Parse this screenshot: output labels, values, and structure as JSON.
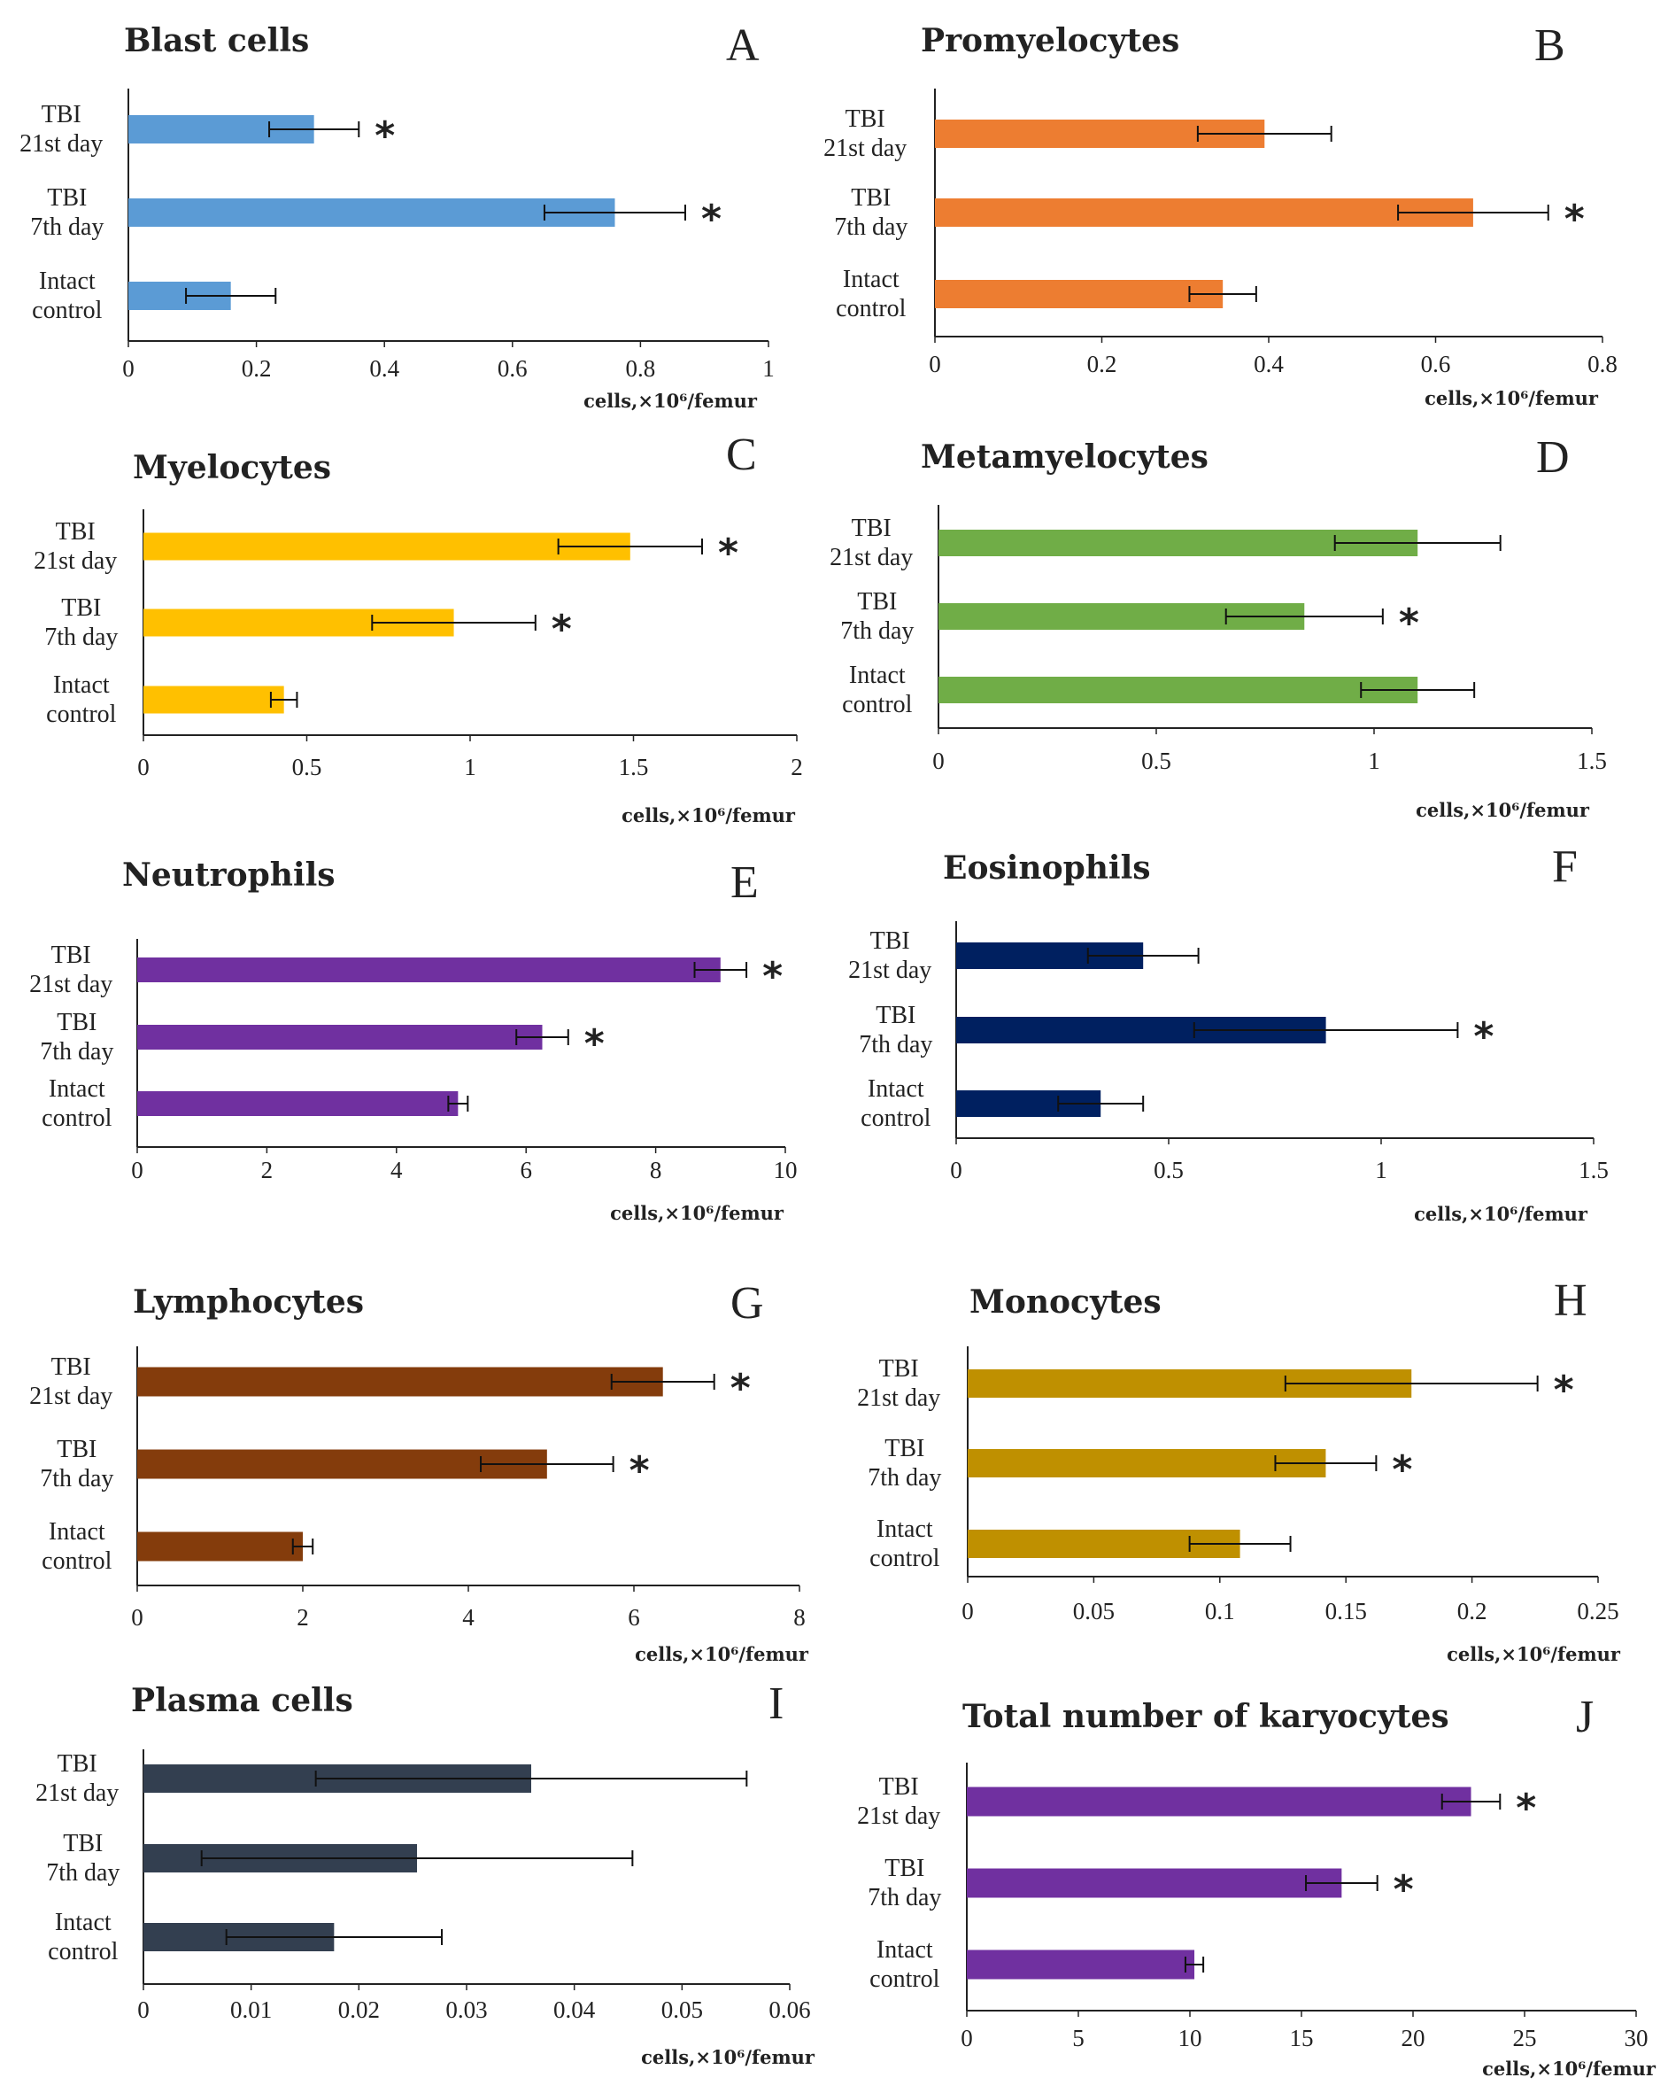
{
  "figure": {
    "unit_label": "cells,×10⁶/femur"
  },
  "chart_data": [
    {
      "id": "A",
      "type": "bar",
      "orientation": "horizontal",
      "title": "Blast cells",
      "panel_letter": "A",
      "categories": [
        "Intact control",
        "TBI 7th day",
        "TBI 21st day"
      ],
      "category_lines": [
        [
          "Intact",
          "control"
        ],
        [
          "TBI",
          "7th day"
        ],
        [
          "TBI",
          "21st day"
        ]
      ],
      "values": [
        0.16,
        0.76,
        0.29
      ],
      "errors": [
        0.07,
        0.11,
        0.07
      ],
      "significant": [
        false,
        true,
        true
      ],
      "xlim": [
        0,
        1
      ],
      "xticks": [
        "0",
        "0.2",
        "0.4",
        "0.6",
        "0.8",
        "1"
      ],
      "xlabel": "cells,×10⁶/femur",
      "color": "#5b9bd5"
    },
    {
      "id": "B",
      "type": "bar",
      "orientation": "horizontal",
      "title": "Promyelocytes",
      "panel_letter": "B",
      "categories": [
        "Intact control",
        "TBI 7th day",
        "TBI 21st day"
      ],
      "category_lines": [
        [
          "Intact",
          "control"
        ],
        [
          "TBI",
          "7th day"
        ],
        [
          "TBI",
          "21st day"
        ]
      ],
      "values": [
        0.345,
        0.645,
        0.395
      ],
      "errors": [
        0.04,
        0.09,
        0.08
      ],
      "significant": [
        false,
        true,
        false
      ],
      "xlim": [
        0,
        0.8
      ],
      "xticks": [
        "0",
        "0.2",
        "0.4",
        "0.6",
        "0.8"
      ],
      "xlabel": "cells,×10⁶/femur",
      "color": "#ed7d31"
    },
    {
      "id": "C",
      "type": "bar",
      "orientation": "horizontal",
      "title": "Myelocytes",
      "panel_letter": "C",
      "categories": [
        "Intact control",
        "TBI 7th day",
        "TBI 21st day"
      ],
      "category_lines": [
        [
          "Intact",
          "control"
        ],
        [
          "TBI",
          "7th day"
        ],
        [
          "TBI",
          "21st day"
        ]
      ],
      "values": [
        0.43,
        0.95,
        1.49
      ],
      "errors": [
        0.04,
        0.25,
        0.22
      ],
      "significant": [
        false,
        true,
        true
      ],
      "xlim": [
        0,
        2
      ],
      "xticks": [
        "0",
        "0.5",
        "1",
        "1.5",
        "2"
      ],
      "xlabel": "cells,×10⁶/femur",
      "color": "#ffc000"
    },
    {
      "id": "D",
      "type": "bar",
      "orientation": "horizontal",
      "title": "Metamyelocytes",
      "panel_letter": "D",
      "categories": [
        "Intact control",
        "TBI 7th day",
        "TBI 21st day"
      ],
      "category_lines": [
        [
          "Intact",
          "control"
        ],
        [
          "TBI",
          "7th day"
        ],
        [
          "TBI",
          "21st day"
        ]
      ],
      "values": [
        1.1,
        0.84,
        1.1
      ],
      "errors": [
        0.13,
        0.18,
        0.19
      ],
      "significant": [
        false,
        true,
        false
      ],
      "xlim": [
        0,
        1.5
      ],
      "xticks": [
        "0",
        "0.5",
        "1",
        "1.5"
      ],
      "xlabel": "cells,×10⁶/femur",
      "color": "#70ad47"
    },
    {
      "id": "E",
      "type": "bar",
      "orientation": "horizontal",
      "title": "Neutrophils",
      "panel_letter": "E",
      "categories": [
        "Intact control",
        "TBI 7th day",
        "TBI 21st day"
      ],
      "category_lines": [
        [
          "Intact",
          "control"
        ],
        [
          "TBI",
          "7th day"
        ],
        [
          "TBI",
          "21st day"
        ]
      ],
      "values": [
        4.95,
        6.25,
        9.0
      ],
      "errors": [
        0.15,
        0.4,
        0.4
      ],
      "significant": [
        false,
        true,
        true
      ],
      "xlim": [
        0,
        10
      ],
      "xticks": [
        "0",
        "2",
        "4",
        "6",
        "8",
        "10"
      ],
      "xlabel": "cells,×10⁶/femur",
      "color": "#7030a0"
    },
    {
      "id": "F",
      "type": "bar",
      "orientation": "horizontal",
      "title": "Eosinophils",
      "panel_letter": "F",
      "categories": [
        "Intact control",
        "TBI 7th day",
        "TBI 21st day"
      ],
      "category_lines": [
        [
          "Intact",
          "control"
        ],
        [
          "TBI",
          "7th day"
        ],
        [
          "TBI",
          "21st day"
        ]
      ],
      "values": [
        0.34,
        0.87,
        0.44
      ],
      "errors": [
        0.1,
        0.31,
        0.13
      ],
      "significant": [
        false,
        true,
        false
      ],
      "xlim": [
        0,
        1.5
      ],
      "xticks": [
        "0",
        "0.5",
        "1",
        "1.5"
      ],
      "xlabel": "cells,×10⁶/femur",
      "color": "#002060"
    },
    {
      "id": "G",
      "type": "bar",
      "orientation": "horizontal",
      "title": "Lymphocytes",
      "panel_letter": "G",
      "categories": [
        "Intact control",
        "TBI 7th day",
        "TBI 21st day"
      ],
      "category_lines": [
        [
          "Intact",
          "control"
        ],
        [
          "TBI",
          "7th day"
        ],
        [
          "TBI",
          "21st day"
        ]
      ],
      "values": [
        2.0,
        4.95,
        6.35
      ],
      "errors": [
        0.12,
        0.8,
        0.62
      ],
      "significant": [
        false,
        true,
        true
      ],
      "xlim": [
        0,
        8
      ],
      "xticks": [
        "0",
        "2",
        "4",
        "6",
        "8"
      ],
      "xlabel": "cells,×10⁶/femur",
      "color": "#843c0c"
    },
    {
      "id": "H",
      "type": "bar",
      "orientation": "horizontal",
      "title": "Monocytes",
      "panel_letter": "H",
      "categories": [
        "Intact control",
        "TBI 7th day",
        "TBI 21st day"
      ],
      "category_lines": [
        [
          "Intact",
          "control"
        ],
        [
          "TBI",
          "7th day"
        ],
        [
          "TBI",
          "21st day"
        ]
      ],
      "values": [
        0.108,
        0.142,
        0.176
      ],
      "errors": [
        0.02,
        0.02,
        0.05
      ],
      "significant": [
        false,
        true,
        true
      ],
      "xlim": [
        0,
        0.25
      ],
      "xticks": [
        "0",
        "0.05",
        "0.1",
        "0.15",
        "0.2",
        "0.25"
      ],
      "xlabel": "cells,×10⁶/femur",
      "color": "#bf9000"
    },
    {
      "id": "I",
      "type": "bar",
      "orientation": "horizontal",
      "title": "Plasma cells",
      "panel_letter": "I",
      "categories": [
        "Intact control",
        "TBI 7th day",
        "TBI 21st day"
      ],
      "category_lines": [
        [
          "Intact",
          "control"
        ],
        [
          "TBI",
          "7th day"
        ],
        [
          "TBI",
          "21st day"
        ]
      ],
      "values": [
        0.0177,
        0.0254,
        0.036
      ],
      "errors": [
        0.01,
        0.02,
        0.02
      ],
      "significant": [
        false,
        false,
        false
      ],
      "xlim": [
        0,
        0.06
      ],
      "xticks": [
        "0",
        "0.01",
        "0.02",
        "0.03",
        "0.04",
        "0.05",
        "0.06"
      ],
      "xlabel": "cells,×10⁶/femur",
      "color": "#333f50"
    },
    {
      "id": "J",
      "type": "bar",
      "orientation": "horizontal",
      "title": "Total number of karyocytes",
      "panel_letter": "J",
      "categories": [
        "Intact control",
        "TBI 7th day",
        "TBI 21st day"
      ],
      "category_lines": [
        [
          "Intact",
          "control"
        ],
        [
          "TBI",
          "7th day"
        ],
        [
          "TBI",
          "21st day"
        ]
      ],
      "values": [
        10.2,
        16.8,
        22.6
      ],
      "errors": [
        0.4,
        1.6,
        1.3
      ],
      "significant": [
        false,
        true,
        true
      ],
      "xlim": [
        0,
        30
      ],
      "xticks": [
        "0",
        "5",
        "10",
        "15",
        "20",
        "25",
        "30"
      ],
      "xlabel": "cells,×10⁶/femur",
      "color": "#7030a0"
    }
  ]
}
